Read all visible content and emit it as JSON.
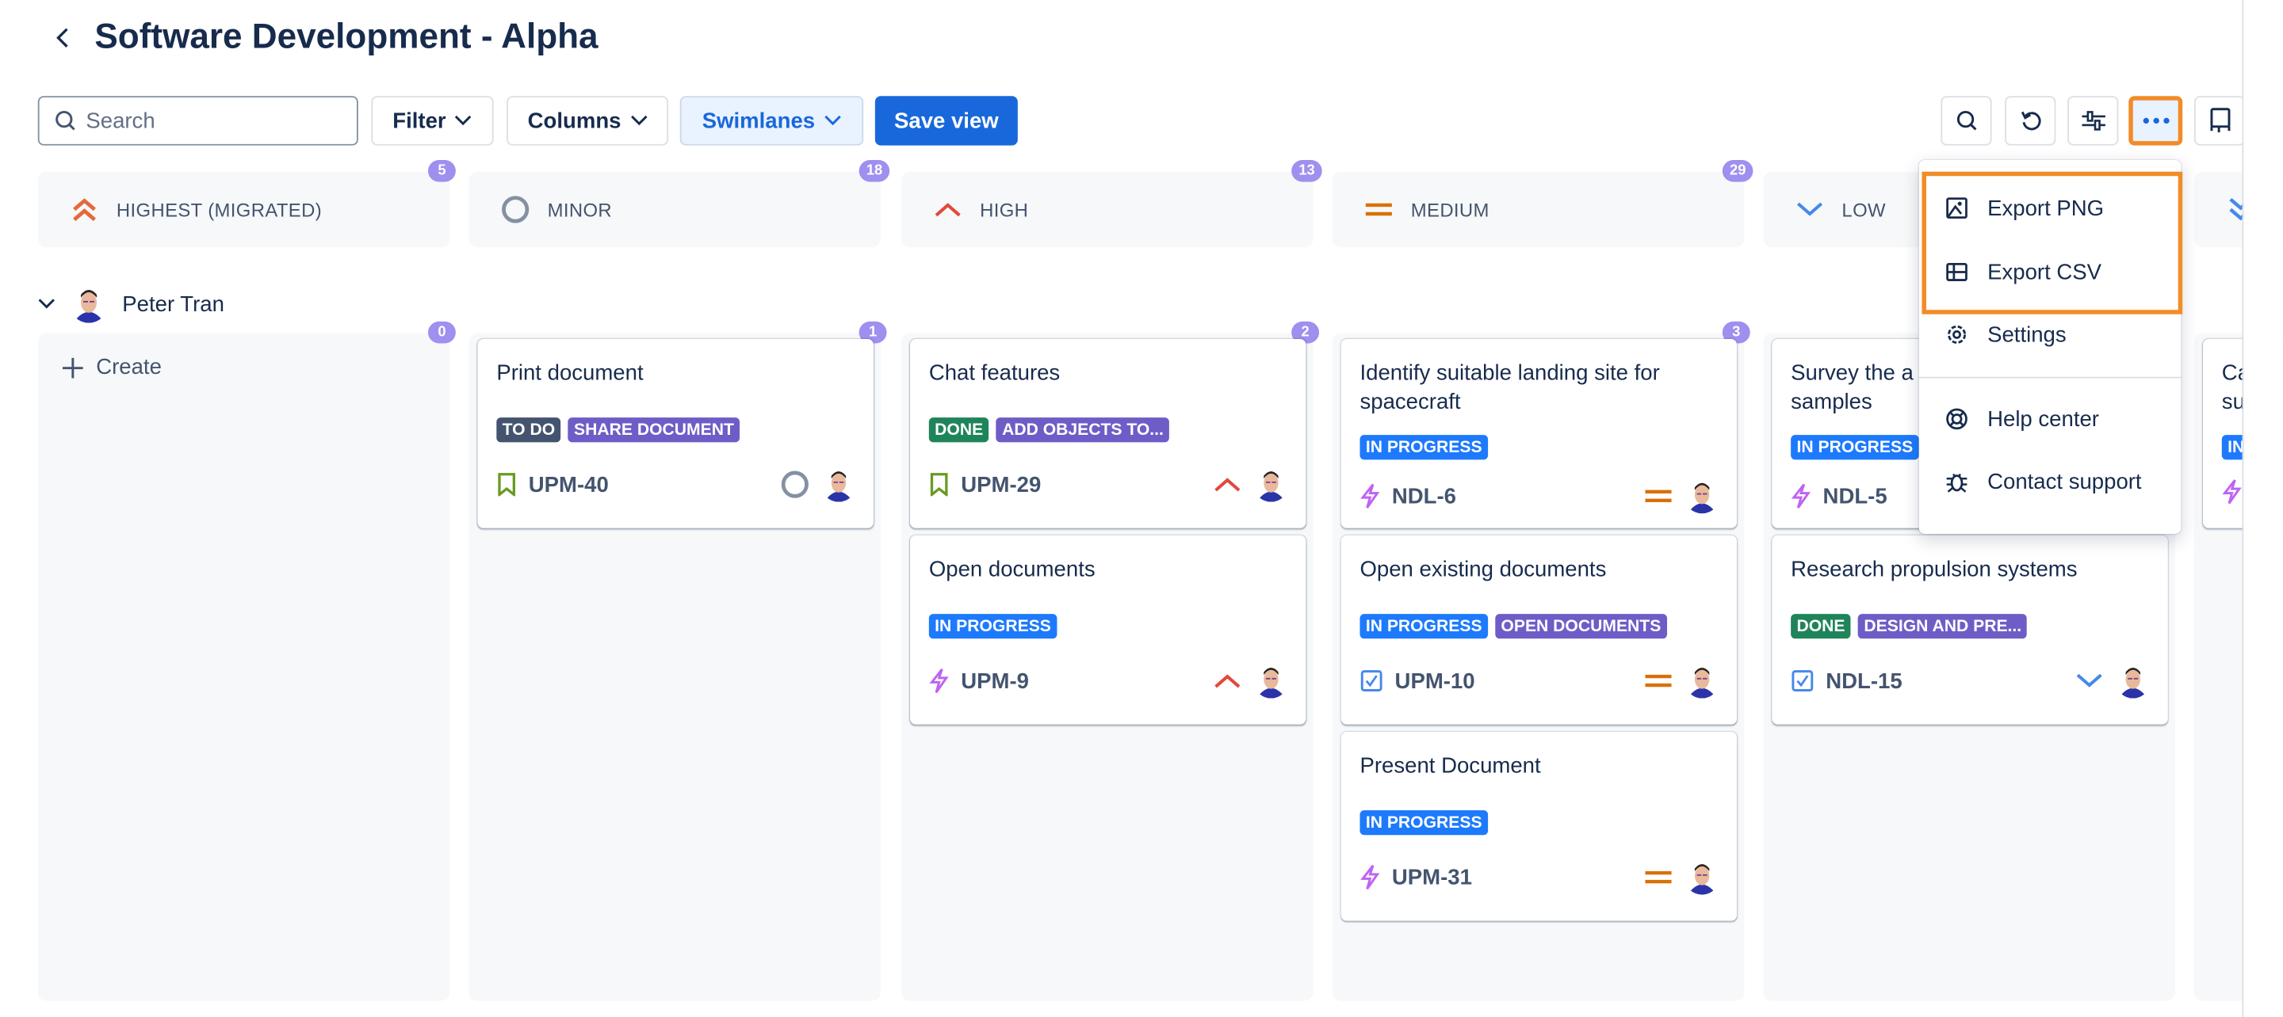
{
  "header": {
    "title": "Software Development - Alpha"
  },
  "toolbar": {
    "search_placeholder": "Search",
    "filter": "Filter",
    "columns": "Columns",
    "swimlanes": "Swimlanes",
    "save_view": "Save view",
    "icons": [
      "search-icon",
      "undo-icon",
      "sliders-icon",
      "more-icon",
      "sidebar-panel-icon"
    ]
  },
  "columns": [
    {
      "label": "HIGHEST (MIGRATED)",
      "count": "5",
      "icon": "highest-priority-icon"
    },
    {
      "label": "MINOR",
      "count": "18",
      "icon": "minor-priority-icon"
    },
    {
      "label": "HIGH",
      "count": "13",
      "icon": "high-priority-icon"
    },
    {
      "label": "MEDIUM",
      "count": "29",
      "icon": "medium-priority-icon"
    },
    {
      "label": "LOW",
      "icon": "low-priority-icon"
    },
    {
      "icon": "lowest-priority-icon"
    }
  ],
  "swimlane": {
    "name": "Peter Tran",
    "create": "Create",
    "lane_counts": [
      "0",
      "1",
      "2",
      "3"
    ]
  },
  "cards": {
    "minor": [
      {
        "title": "Print document",
        "tags": [
          {
            "text": "TO DO",
            "color": "#44546f"
          },
          {
            "text": "SHARE DOCUMENT",
            "color": "#6e5dc6"
          }
        ],
        "key": "UPM-40",
        "type": "story"
      }
    ],
    "high": [
      {
        "title": "Chat features",
        "tags": [
          {
            "text": "DONE",
            "color": "#1f845a"
          },
          {
            "text": "ADD OBJECTS TO...",
            "color": "#6e5dc6"
          }
        ],
        "key": "UPM-29",
        "type": "story"
      },
      {
        "title": "Open documents",
        "tags": [
          {
            "text": "IN PROGRESS",
            "color": "#1d7afc"
          }
        ],
        "key": "UPM-9",
        "type": "epic"
      }
    ],
    "medium": [
      {
        "title": "Identify suitable landing site for spacecraft",
        "tags": [
          {
            "text": "IN PROGRESS",
            "color": "#1d7afc"
          }
        ],
        "key": "NDL-6",
        "type": "epic"
      },
      {
        "title": "Open existing documents",
        "tags": [
          {
            "text": "IN PROGRESS",
            "color": "#1d7afc"
          },
          {
            "text": "OPEN DOCUMENTS",
            "color": "#6e5dc6"
          }
        ],
        "key": "UPM-10",
        "type": "task"
      },
      {
        "title": "Present Document",
        "tags": [
          {
            "text": "IN PROGRESS",
            "color": "#1d7afc"
          }
        ],
        "key": "UPM-31",
        "type": "epic"
      }
    ],
    "low": [
      {
        "title": "Survey the a... samples",
        "title_line1": "Survey the a",
        "title_line2": "samples",
        "tags": [
          {
            "text": "IN PROGRESS",
            "color": "#1d7afc"
          }
        ],
        "key": "NDL-5",
        "type": "epic"
      },
      {
        "title": "Research propulsion systems",
        "tags": [
          {
            "text": "DONE",
            "color": "#1f845a"
          },
          {
            "text": "DESIGN AND PRE...",
            "color": "#6e5dc6"
          }
        ],
        "key": "NDL-15",
        "type": "task"
      }
    ],
    "lowest": [
      {
        "title_line1": "Ca",
        "title_line2": "su",
        "tag": "IN",
        "type": "epic"
      }
    ]
  },
  "menu": {
    "items": [
      {
        "label": "Export PNG",
        "icon": "image-icon"
      },
      {
        "label": "Export CSV",
        "icon": "table-icon"
      },
      {
        "label": "Settings",
        "icon": "gear-icon"
      },
      {
        "label": "Help center",
        "icon": "lifebuoy-icon"
      },
      {
        "label": "Contact support",
        "icon": "bug-icon"
      }
    ]
  },
  "colors": {
    "accent": "#1868db",
    "highlight": "#f28c28",
    "badge": "#9f8fef",
    "high": "#e2483d",
    "medium": "#d97008",
    "low": "#4688ec"
  }
}
